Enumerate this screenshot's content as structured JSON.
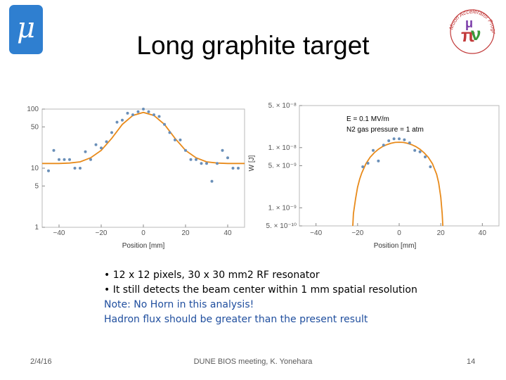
{
  "slide": {
    "title": "Long graphite target",
    "logo_mu_text": "μ",
    "logo_map_text": "Muon Accelerator Program",
    "bullets": [
      "• 12 x 12 pixels, 30 x 30 mm2 RF resonator",
      "• It still detects the beam center within 1 mm spatial resolution"
    ],
    "notes": [
      "Note: No Horn in this analysis!",
      "Hadron flux should be greater than the present result"
    ],
    "footer": {
      "date": "2/4/16",
      "center": "DUNE BIOS meeting, K. Yonehara",
      "page": "14"
    }
  },
  "colors": {
    "curve": "#e88a1a",
    "points": "#6a8fb8",
    "note_text": "#1f4e9e",
    "mu_logo": "#2f7fd0"
  },
  "chart_data": [
    {
      "type": "scatter",
      "xlabel": "Position [mm]",
      "ylabel": "",
      "yscale": "log",
      "xlim": [
        -48,
        48
      ],
      "ylim": [
        1,
        100
      ],
      "xticks": [
        -40,
        -20,
        0,
        20,
        40
      ],
      "yticks": [
        {
          "value": 100,
          "label": "100"
        },
        {
          "value": 50,
          "label": "50"
        },
        {
          "value": 10,
          "label": "10"
        },
        {
          "value": 5,
          "label": "5"
        },
        {
          "value": 1,
          "label": "1"
        }
      ],
      "grid": false,
      "series": [
        {
          "kind": "points",
          "x": [
            -45,
            -42.5,
            -40,
            -37.5,
            -35,
            -32.5,
            -30,
            -27.5,
            -25,
            -22.5,
            -20,
            -17.5,
            -15,
            -12.5,
            -10,
            -7.5,
            -5,
            -2.5,
            0,
            2.5,
            5,
            7.5,
            10,
            12.5,
            15,
            17.5,
            20,
            22.5,
            25,
            27.5,
            30,
            32.5,
            35,
            37.5,
            40,
            42.5,
            45
          ],
          "y": [
            9,
            20,
            14,
            14,
            14,
            10,
            10,
            19,
            14,
            25,
            22,
            28,
            40,
            60,
            65,
            85,
            80,
            90,
            100,
            90,
            80,
            75,
            55,
            40,
            30,
            30,
            20,
            14,
            14,
            12,
            12,
            6,
            12,
            20,
            15,
            10,
            10
          ]
        },
        {
          "kind": "fit",
          "x": [
            -48,
            -40,
            -35,
            -30,
            -25,
            -20,
            -15,
            -10,
            -5,
            0,
            5,
            10,
            15,
            20,
            25,
            30,
            35,
            40,
            48
          ],
          "y": [
            12,
            12,
            12.2,
            12.8,
            15,
            20,
            32,
            55,
            78,
            88,
            78,
            55,
            32,
            20,
            15,
            12.8,
            12.2,
            12,
            12
          ]
        }
      ]
    },
    {
      "type": "scatter",
      "xlabel": "Position [mm]",
      "ylabel": "W [J]",
      "yscale": "log",
      "xlim": [
        -48,
        48
      ],
      "ylim": [
        5e-10,
        5e-08
      ],
      "xticks": [
        -40,
        -20,
        0,
        20,
        40
      ],
      "yticks": [
        {
          "value": 5e-08,
          "label": "5. × 10⁻⁸"
        },
        {
          "value": 1e-08,
          "label": "1. × 10⁻⁸"
        },
        {
          "value": 5e-09,
          "label": "5. × 10⁻⁹"
        },
        {
          "value": 1e-09,
          "label": "1. × 10⁻⁹"
        },
        {
          "value": 5e-10,
          "label": "5. × 10⁻¹⁰"
        }
      ],
      "annotations": [
        "E = 0.1 MV/m",
        "N2 gas pressure = 1 atm"
      ],
      "grid": false,
      "series": [
        {
          "kind": "points",
          "x": [
            -17.5,
            -15,
            -12.5,
            -10,
            -7.5,
            -5,
            -2.5,
            0,
            2.5,
            5,
            7.5,
            10,
            12.5,
            15
          ],
          "y": [
            4.8e-09,
            5.5e-09,
            9e-09,
            6e-09,
            1.1e-08,
            1.3e-08,
            1.4e-08,
            1.4e-08,
            1.35e-08,
            1.2e-08,
            9e-09,
            8.5e-09,
            7e-09,
            4.8e-09
          ]
        },
        {
          "kind": "fit",
          "x": [
            -22.3,
            -22,
            -21,
            -20,
            -19,
            -18,
            -16,
            -14,
            -12,
            -10,
            -8,
            -6,
            -4,
            -2,
            0,
            2,
            4,
            6,
            8,
            10,
            12,
            14,
            16,
            18,
            19,
            20,
            20.7,
            21
          ],
          "y": [
            5e-10,
            8e-10,
            1.4e-09,
            2.2e-09,
            3e-09,
            3.8e-09,
            5.4e-09,
            6.9e-09,
            8.2e-09,
            9.4e-09,
            1.04e-08,
            1.12e-08,
            1.18e-08,
            1.22e-08,
            1.23e-08,
            1.22e-08,
            1.18e-08,
            1.12e-08,
            1.04e-08,
            9.4e-09,
            8.2e-09,
            6.9e-09,
            5.4e-09,
            3.6e-09,
            2.6e-09,
            1.5e-09,
            8e-10,
            5e-10
          ]
        }
      ]
    }
  ]
}
